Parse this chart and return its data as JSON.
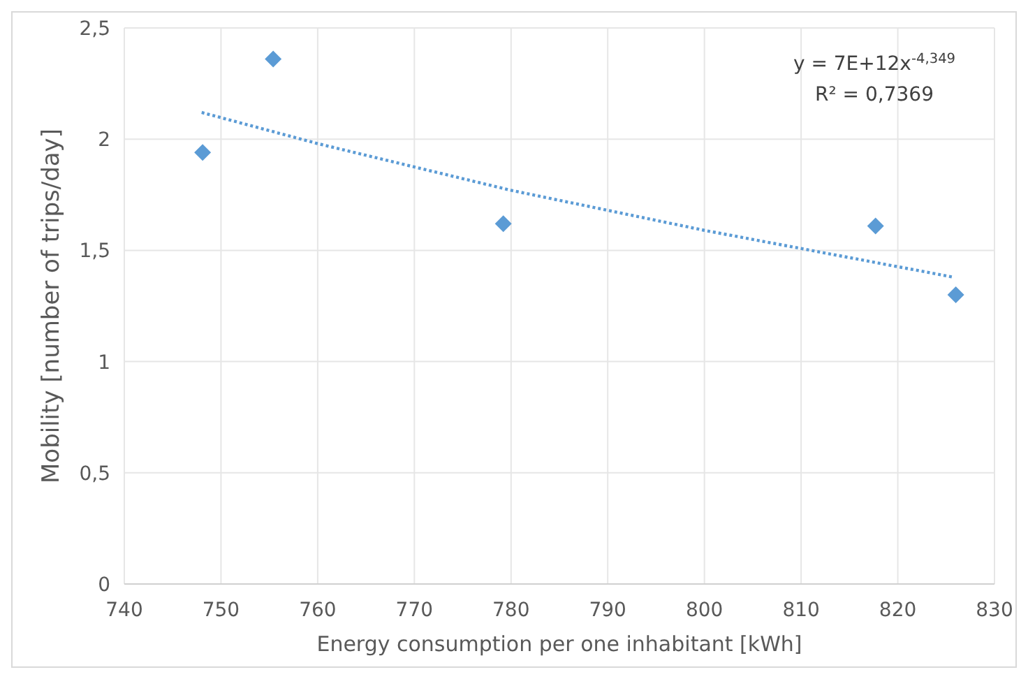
{
  "chart_data": {
    "type": "scatter",
    "xlabel": "Energy consumption per one inhabitant [kWh]",
    "ylabel": "Mobility [number of trips/day]",
    "xlim": [
      740,
      830
    ],
    "xticks": [
      740,
      750,
      760,
      770,
      780,
      790,
      800,
      810,
      820,
      830
    ],
    "ylim": [
      0,
      2.5
    ],
    "yticks": [
      0,
      {
        "value": 0.5,
        "label": "0,5"
      },
      1,
      {
        "value": 1.5,
        "label": "1,5"
      },
      2,
      {
        "value": 2.5,
        "label": "2,5"
      }
    ],
    "grid": true,
    "series": [
      {
        "type": "scatter",
        "color": "#5b9bd5",
        "marker": "diamond",
        "x": [
          748.1,
          755.4,
          779.2,
          817.7,
          826.0
        ],
        "values": [
          1.94,
          2.36,
          1.62,
          1.61,
          1.3
        ]
      },
      {
        "type": "line",
        "color": "#5b9bd5",
        "line_style": "dotted",
        "x": [
          748,
          760,
          780,
          800,
          825.7
        ],
        "values": [
          2.12,
          1.98,
          1.77,
          1.59,
          1.38
        ]
      }
    ],
    "annotations": [
      "y = 7E+12x$^{-4,349}$",
      "R² = 0,7369"
    ]
  }
}
